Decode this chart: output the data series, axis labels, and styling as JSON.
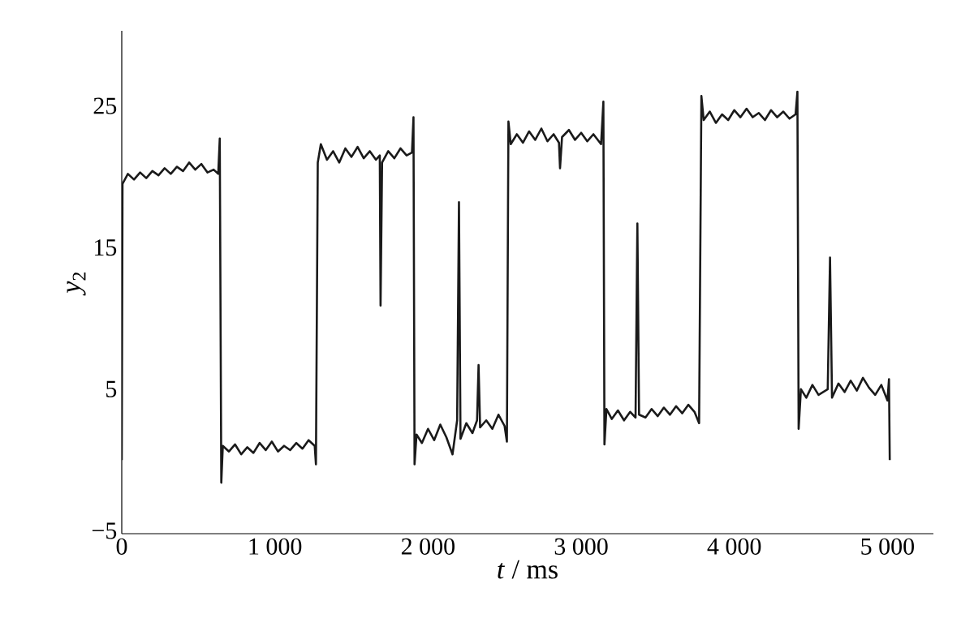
{
  "chart_data": {
    "type": "line",
    "xlabel": "*t* / ms",
    "ylabel": "*y*$_{2}$",
    "color": "#1a1a1a",
    "line_style": "solid",
    "marker": "none",
    "xlim": [
      0,
      5300
    ],
    "ylim": [
      -5.2,
      30.3
    ],
    "xticks": [
      0,
      {
        "value": 1000,
        "label": "1 000"
      },
      {
        "value": 2000,
        "label": "2 000"
      },
      {
        "value": 3000,
        "label": "3 000"
      },
      {
        "value": 4000,
        "label": "4 000"
      },
      {
        "value": 5000,
        "label": "5 000"
      }
    ],
    "yticks": [
      {
        "value": -5,
        "label": "−5"
      },
      5,
      15,
      25
    ],
    "x": [
      0,
      5,
      40,
      80,
      120,
      160,
      200,
      240,
      280,
      320,
      360,
      400,
      440,
      480,
      520,
      560,
      600,
      630,
      640,
      650,
      660,
      700,
      740,
      780,
      820,
      860,
      900,
      940,
      980,
      1020,
      1060,
      1100,
      1140,
      1180,
      1220,
      1260,
      1268,
      1280,
      1300,
      1340,
      1380,
      1420,
      1460,
      1500,
      1540,
      1580,
      1620,
      1660,
      1685,
      1690,
      1700,
      1740,
      1780,
      1820,
      1860,
      1895,
      1905,
      1912,
      1925,
      1960,
      2000,
      2040,
      2080,
      2120,
      2160,
      2190,
      2202,
      2212,
      2250,
      2290,
      2320,
      2330,
      2340,
      2380,
      2420,
      2460,
      2500,
      2515,
      2525,
      2540,
      2580,
      2620,
      2660,
      2700,
      2740,
      2780,
      2820,
      2855,
      2862,
      2875,
      2920,
      2960,
      3000,
      3040,
      3080,
      3130,
      3145,
      3152,
      3165,
      3200,
      3240,
      3280,
      3320,
      3355,
      3367,
      3378,
      3420,
      3460,
      3500,
      3540,
      3580,
      3620,
      3660,
      3700,
      3740,
      3770,
      3785,
      3800,
      3840,
      3880,
      3920,
      3960,
      4000,
      4040,
      4080,
      4120,
      4160,
      4200,
      4240,
      4280,
      4320,
      4360,
      4400,
      4412,
      4420,
      4435,
      4470,
      4510,
      4550,
      4610,
      4625,
      4638,
      4680,
      4720,
      4760,
      4800,
      4840,
      4880,
      4920,
      4960,
      5000,
      5010,
      5015
    ],
    "values": [
      0,
      19.5,
      20.2,
      19.8,
      20.3,
      19.9,
      20.4,
      20.1,
      20.6,
      20.2,
      20.7,
      20.4,
      21.0,
      20.5,
      20.9,
      20.3,
      20.5,
      20.2,
      22.7,
      -1.6,
      1.0,
      0.6,
      1.1,
      0.4,
      0.9,
      0.5,
      1.2,
      0.7,
      1.3,
      0.6,
      1.0,
      0.7,
      1.2,
      0.8,
      1.4,
      1.0,
      -0.3,
      21.0,
      22.3,
      21.2,
      21.8,
      21.0,
      22.0,
      21.4,
      22.1,
      21.3,
      21.8,
      21.2,
      21.5,
      10.9,
      21.0,
      21.8,
      21.3,
      22.0,
      21.5,
      21.7,
      24.2,
      -0.3,
      1.8,
      1.2,
      2.2,
      1.4,
      2.5,
      1.6,
      0.4,
      2.8,
      18.2,
      1.5,
      2.6,
      1.9,
      2.8,
      6.7,
      2.3,
      2.8,
      2.2,
      3.2,
      2.4,
      1.3,
      23.9,
      22.3,
      23.0,
      22.4,
      23.2,
      22.6,
      23.4,
      22.5,
      23.0,
      22.4,
      20.6,
      22.8,
      23.3,
      22.6,
      23.1,
      22.5,
      23.0,
      22.3,
      25.3,
      1.1,
      3.6,
      2.9,
      3.5,
      2.8,
      3.4,
      3.0,
      16.7,
      3.2,
      3.0,
      3.6,
      3.1,
      3.7,
      3.2,
      3.8,
      3.3,
      3.9,
      3.4,
      2.6,
      25.7,
      24.0,
      24.6,
      23.8,
      24.4,
      24.0,
      24.7,
      24.2,
      24.8,
      24.2,
      24.5,
      24.0,
      24.7,
      24.2,
      24.6,
      24.1,
      24.4,
      26.0,
      2.2,
      5.0,
      4.4,
      5.3,
      4.6,
      5.0,
      14.3,
      4.4,
      5.4,
      4.8,
      5.6,
      4.9,
      5.8,
      5.1,
      4.6,
      5.3,
      4.2,
      5.7,
      0
    ]
  }
}
